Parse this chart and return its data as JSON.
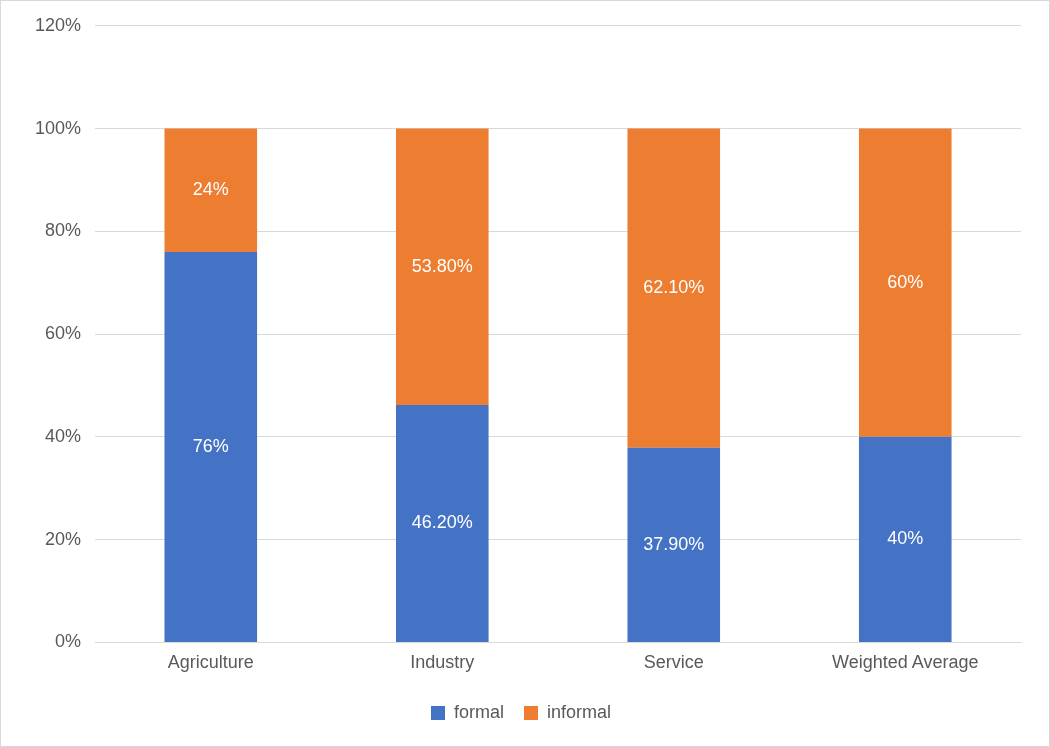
{
  "chart_data": {
    "type": "bar",
    "stacked": true,
    "categories": [
      "Agriculture",
      "Industry",
      "Service",
      "Weighted Average"
    ],
    "series": [
      {
        "name": "formal",
        "color": "#4472c4",
        "values": [
          76,
          46.2,
          37.9,
          40
        ],
        "value_labels": [
          "76%",
          "46.20%",
          "37.90%",
          "40%"
        ]
      },
      {
        "name": "informal",
        "color": "#ed7d31",
        "values": [
          24,
          53.8,
          62.1,
          60
        ],
        "value_labels": [
          "24%",
          "53.80%",
          "62.10%",
          "60%"
        ]
      }
    ],
    "ylim": [
      0,
      120
    ],
    "yticks": [
      {
        "value": 0,
        "label": "0%"
      },
      {
        "value": 20,
        "label": "20%"
      },
      {
        "value": 40,
        "label": "40%"
      },
      {
        "value": 60,
        "label": "60%"
      },
      {
        "value": 80,
        "label": "80%"
      },
      {
        "value": 100,
        "label": "100%"
      },
      {
        "value": 120,
        "label": "120%"
      }
    ],
    "grid": "y",
    "legend": "bottom"
  }
}
